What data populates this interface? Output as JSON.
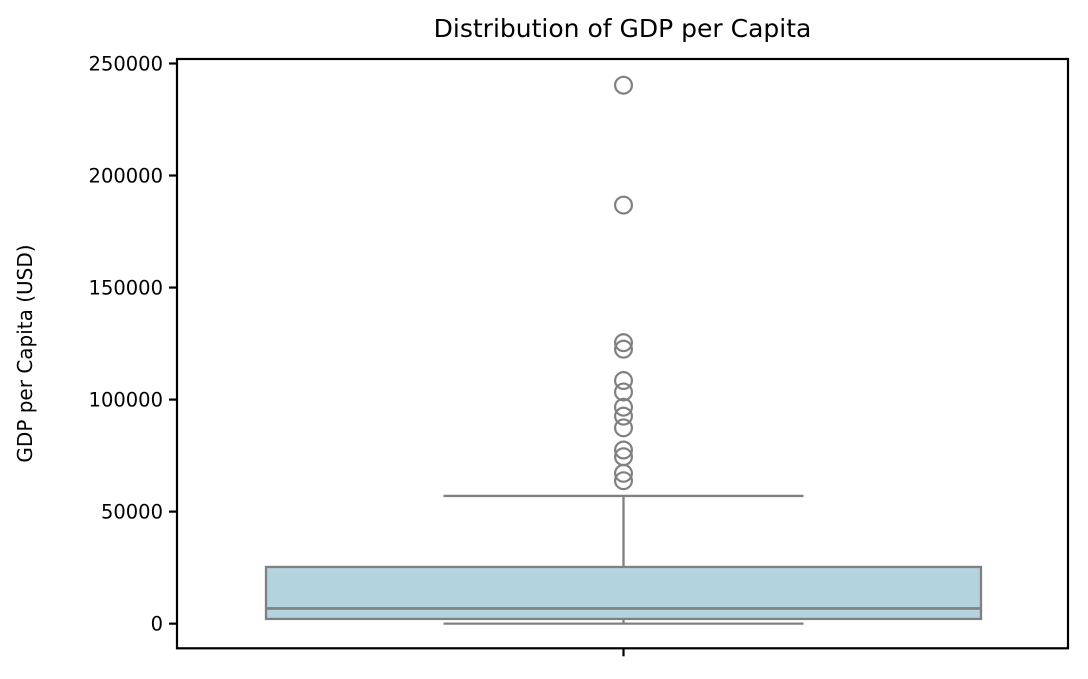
{
  "chart_data": {
    "type": "box",
    "title": "Distribution of GDP per Capita",
    "ylabel": "GDP per Capita (USD)",
    "xlabel": "",
    "yticks": [
      0,
      50000,
      100000,
      150000,
      200000,
      250000
    ],
    "ylim": [
      -11000,
      252000
    ],
    "grid": false,
    "legend": null,
    "series_name": "GDP per Capita",
    "box": {
      "whisker_low": 0,
      "q1": 2100,
      "median": 6800,
      "q3": 25300,
      "whisker_high": 57000,
      "outliers": [
        240300,
        186800,
        125400,
        122500,
        108500,
        103400,
        96600,
        92600,
        87400,
        77500,
        74500,
        67100,
        63800
      ]
    },
    "colors": {
      "box_fill": "#b3d3de",
      "line_gray": "#808080",
      "spine": "#000000",
      "background": "#ffffff"
    }
  }
}
